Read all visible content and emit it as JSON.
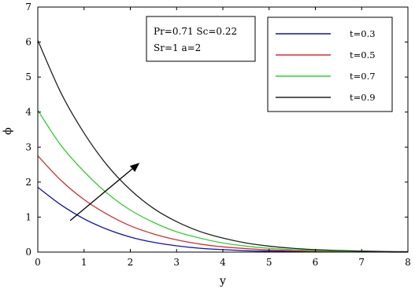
{
  "chart_data": {
    "type": "line",
    "xlabel": "y",
    "ylabel": "ϕ",
    "xlim": [
      0,
      8
    ],
    "ylim": [
      0,
      7
    ],
    "xticks": [
      0,
      1,
      2,
      3,
      4,
      5,
      6,
      7,
      8
    ],
    "yticks": [
      0,
      1,
      2,
      3,
      4,
      5,
      6,
      7
    ],
    "grid": false,
    "legend_position": "top-right",
    "annotation": {
      "line1": "Pr=0.71 Sc=0.22",
      "line2": "Sr=1 a=2"
    },
    "arrow": {
      "from": [
        0.7,
        0.9
      ],
      "to": [
        2.2,
        2.55
      ]
    },
    "series": [
      {
        "name": "t=0.3",
        "color": "#1010b0",
        "x": [
          0,
          0.5,
          1,
          1.5,
          2,
          2.5,
          3,
          3.5,
          4,
          4.5,
          5,
          5.5,
          6,
          6.5,
          7,
          7.5,
          8
        ],
        "y": [
          1.85,
          1.35,
          0.95,
          0.65,
          0.43,
          0.28,
          0.18,
          0.11,
          0.07,
          0.04,
          0.025,
          0.015,
          0.01,
          0.005,
          0.003,
          0.002,
          0.001
        ]
      },
      {
        "name": "t=0.5",
        "color": "#d03030",
        "x": [
          0,
          0.5,
          1,
          1.5,
          2,
          2.5,
          3,
          3.5,
          4,
          4.5,
          5,
          5.5,
          6,
          6.5,
          7,
          7.5,
          8
        ],
        "y": [
          2.75,
          2.05,
          1.5,
          1.08,
          0.75,
          0.52,
          0.35,
          0.23,
          0.15,
          0.1,
          0.06,
          0.04,
          0.025,
          0.015,
          0.01,
          0.005,
          0.003
        ]
      },
      {
        "name": "t=0.7",
        "color": "#30d030",
        "x": [
          0,
          0.5,
          1,
          1.5,
          2,
          2.5,
          3,
          3.5,
          4,
          4.5,
          5,
          5.5,
          6,
          6.5,
          7,
          7.5,
          8
        ],
        "y": [
          4.05,
          3.05,
          2.3,
          1.68,
          1.2,
          0.85,
          0.58,
          0.4,
          0.26,
          0.17,
          0.11,
          0.07,
          0.045,
          0.028,
          0.017,
          0.01,
          0.006
        ]
      },
      {
        "name": "t=0.9",
        "color": "#202020",
        "x": [
          0,
          0.5,
          1,
          1.5,
          2,
          2.5,
          3,
          3.5,
          4,
          4.5,
          5,
          5.5,
          6,
          6.5,
          7,
          7.5,
          8
        ],
        "y": [
          6.05,
          4.55,
          3.4,
          2.48,
          1.78,
          1.25,
          0.87,
          0.59,
          0.4,
          0.26,
          0.17,
          0.11,
          0.07,
          0.045,
          0.028,
          0.017,
          0.01
        ]
      }
    ]
  }
}
